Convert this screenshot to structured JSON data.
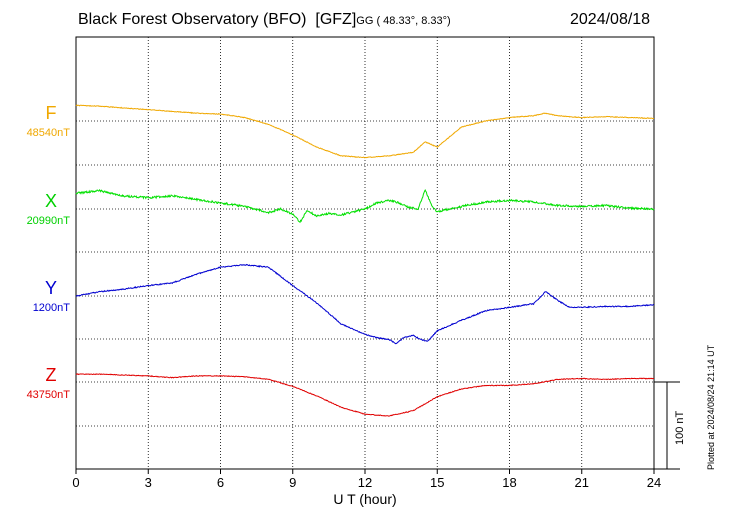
{
  "header": {
    "observatory": "Black Forest Observatory (BFO)",
    "institute": "[GFZ]",
    "coords": "GG ( 48.33°,   8.33°)",
    "date": "2024/08/18"
  },
  "plotted_note": "Plotted at 2024/08/24 21:14 UT",
  "colors": {
    "F": "#f0a800",
    "X": "#00e000",
    "Y": "#0000d0",
    "Z": "#e00000"
  },
  "chart_data": {
    "type": "line",
    "title": "Black Forest Observatory (BFO)",
    "xlabel": "U T (hour)",
    "xlim": [
      0,
      24
    ],
    "x_ticks": [
      0,
      3,
      6,
      9,
      12,
      15,
      18,
      21,
      24
    ],
    "scale_bar": {
      "label": "100 nT",
      "value_nT": 100
    },
    "grid": true,
    "series": [
      {
        "name": "F",
        "baseline_label": "48540nT",
        "baseline_nT": 48540,
        "x": [
          0,
          1,
          2,
          3,
          4,
          5,
          6,
          7,
          8,
          9,
          10,
          11,
          12,
          13,
          14,
          14.5,
          15,
          16,
          17,
          18,
          19,
          19.5,
          20,
          21,
          22,
          23,
          24
        ],
        "y": [
          48558,
          48557,
          48555,
          48553,
          48551,
          48549,
          48548,
          48544,
          48536,
          48524,
          48510,
          48500,
          48498,
          48500,
          48504,
          48516,
          48510,
          48533,
          48540,
          48544,
          48546,
          48549,
          48546,
          48544,
          48545,
          48544,
          48543
        ]
      },
      {
        "name": "X",
        "baseline_label": "20990nT",
        "baseline_nT": 20990,
        "x": [
          0,
          1,
          2,
          3,
          4,
          5,
          6,
          7,
          8,
          8.5,
          9,
          9.3,
          9.6,
          10,
          10.5,
          11,
          12,
          12.5,
          13,
          13.3,
          13.8,
          14.2,
          14.5,
          14.8,
          15,
          16,
          17,
          18,
          19,
          20,
          21,
          22,
          23,
          24
        ],
        "y": [
          21008,
          21011,
          21005,
          21003,
          21005,
          21001,
          20997,
          20993,
          20986,
          20990,
          20984,
          20975,
          20988,
          20982,
          20985,
          20983,
          20990,
          20997,
          21000,
          20998,
          20992,
          20990,
          21012,
          20992,
          20987,
          20993,
          20998,
          21000,
          20998,
          20994,
          20993,
          20994,
          20991,
          20990
        ]
      },
      {
        "name": "Y",
        "baseline_label": "1200nT",
        "baseline_nT": 1200,
        "x": [
          0,
          1,
          2,
          3,
          4,
          5,
          6,
          7,
          8,
          9,
          10,
          11,
          12,
          12.5,
          13,
          13.3,
          13.6,
          14,
          14.3,
          14.6,
          15,
          16,
          17,
          18,
          19,
          19.5,
          20,
          20.5,
          21,
          22,
          23,
          24
        ],
        "y": [
          1200,
          1205,
          1208,
          1212,
          1215,
          1225,
          1233,
          1236,
          1233,
          1212,
          1192,
          1168,
          1156,
          1152,
          1150,
          1145,
          1152,
          1155,
          1150,
          1148,
          1160,
          1172,
          1183,
          1187,
          1191,
          1205,
          1195,
          1187,
          1187,
          1188,
          1188,
          1190
        ]
      },
      {
        "name": "Z",
        "baseline_label": "43750nT",
        "baseline_nT": 43750,
        "x": [
          0,
          1,
          2,
          3,
          4,
          5,
          6,
          7,
          8,
          9,
          10,
          11,
          12,
          13,
          14,
          15,
          16,
          17,
          18,
          19,
          20,
          21,
          22,
          23,
          24
        ],
        "y": [
          43759,
          43759,
          43758,
          43757,
          43755,
          43757,
          43757,
          43756,
          43753,
          43745,
          43734,
          43721,
          43713,
          43711,
          43717,
          43733,
          43742,
          43746,
          43746,
          43748,
          43753,
          43754,
          43753,
          43754,
          43754
        ]
      }
    ]
  }
}
